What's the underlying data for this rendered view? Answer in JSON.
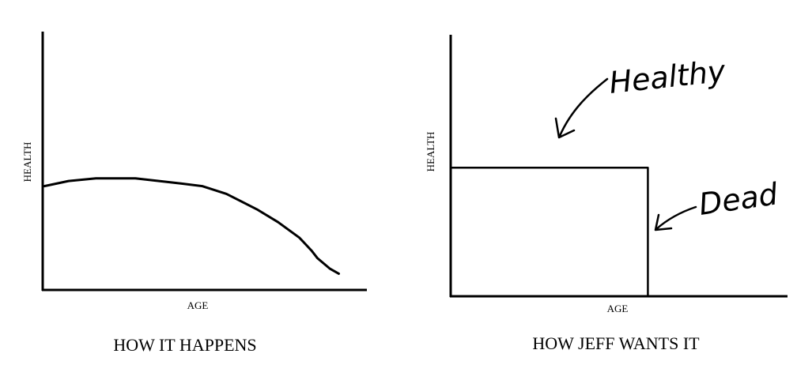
{
  "chart_data": [
    {
      "type": "line",
      "title": "HOW IT HAPPENS",
      "xlabel": "AGE",
      "ylabel": "HEALTH",
      "xlim": [
        0,
        100
      ],
      "ylim": [
        0,
        100
      ],
      "grid": false,
      "series": [
        {
          "x": [
            0,
            8,
            17,
            30,
            45,
            52,
            60,
            70,
            77,
            84,
            88,
            90,
            94,
            97
          ],
          "y": [
            40,
            42,
            43,
            43,
            41,
            40,
            37,
            31,
            26,
            20,
            15,
            12,
            8,
            6
          ]
        }
      ]
    },
    {
      "type": "line",
      "title": "HOW JEFF WANTS IT",
      "xlabel": "AGE",
      "ylabel": "HEALTH",
      "xlim": [
        0,
        100
      ],
      "ylim": [
        0,
        100
      ],
      "grid": false,
      "series": [
        {
          "x": [
            0,
            60,
            60
          ],
          "y": [
            55,
            55,
            0
          ]
        }
      ],
      "annotations": [
        {
          "text": "Healthy",
          "points_to": "top edge"
        },
        {
          "text": "Dead",
          "points_to": "vertical drop"
        }
      ]
    }
  ]
}
